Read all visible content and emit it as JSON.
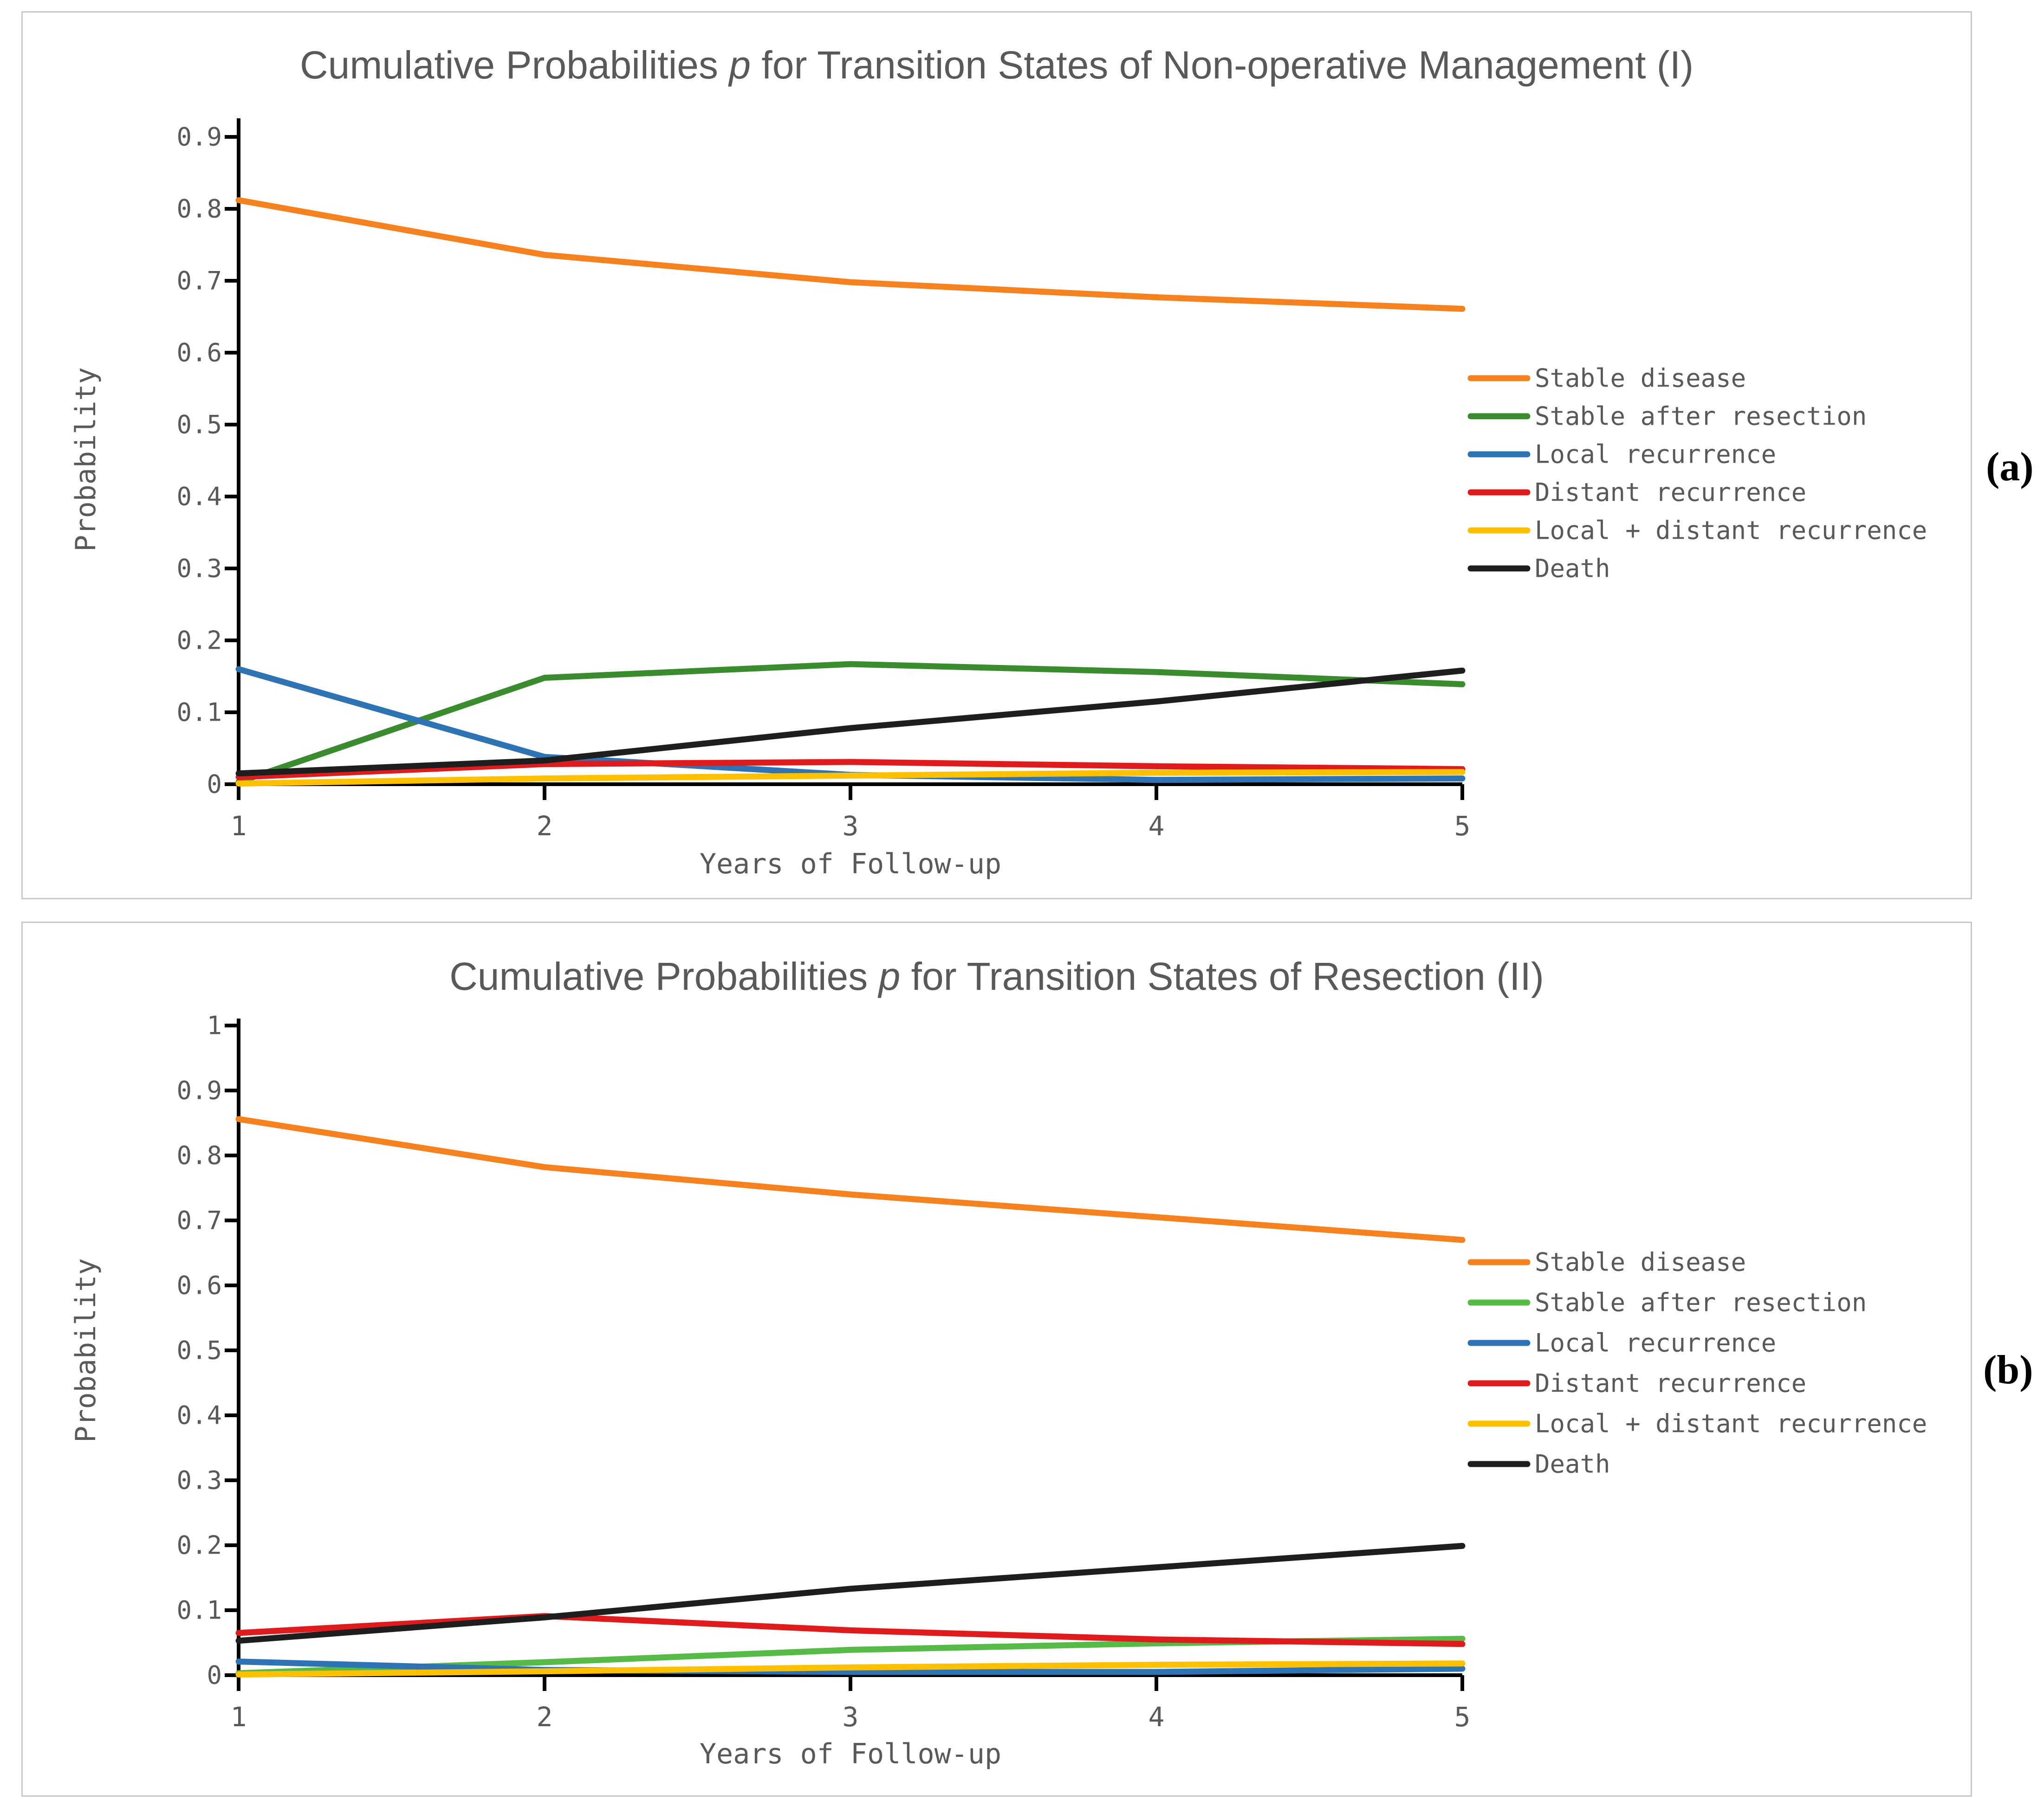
{
  "figure": {
    "background": "#ffffff",
    "border_color": "#c9c9c9",
    "text_color": "#595959",
    "axis_color": "#000000"
  },
  "chart_data": [
    {
      "type": "line",
      "panel": "a",
      "side_label": "(a)",
      "title_prefix": "Cumulative Probabilities ",
      "title_italic": "p",
      "title_suffix": " for Transition States of Non-operative Management (I)",
      "xlabel": "Years of Follow-up",
      "ylabel": "Probability",
      "x": [
        1,
        2,
        3,
        4,
        5
      ],
      "xtick_labels": [
        "1",
        "2",
        "3",
        "4",
        "5"
      ],
      "ylim": [
        0,
        0.9
      ],
      "ytick_step": 0.1,
      "ytick_labels": [
        "0",
        "0.1",
        "0.2",
        "0.3",
        "0.4",
        "0.5",
        "0.6",
        "0.7",
        "0.8",
        "0.9"
      ],
      "grid": false,
      "legend_position": "right",
      "series": [
        {
          "name": "Stable disease",
          "color": "#F5821F",
          "values": [
            0.812,
            0.736,
            0.698,
            0.677,
            0.661
          ]
        },
        {
          "name": "Stable after resection",
          "color": "#3A8C2E",
          "values": [
            0.003,
            0.148,
            0.167,
            0.156,
            0.139
          ]
        },
        {
          "name": "Local recurrence",
          "color": "#2E74B5",
          "values": [
            0.16,
            0.038,
            0.013,
            0.006,
            0.008
          ]
        },
        {
          "name": "Distant recurrence",
          "color": "#E01B1E",
          "values": [
            0.01,
            0.028,
            0.031,
            0.025,
            0.021
          ]
        },
        {
          "name": "Local + distant recurrence",
          "color": "#FFC000",
          "values": [
            0.001,
            0.008,
            0.012,
            0.016,
            0.017
          ]
        },
        {
          "name": "Death",
          "color": "#1E1E1E",
          "values": [
            0.015,
            0.033,
            0.078,
            0.115,
            0.158
          ]
        }
      ]
    },
    {
      "type": "line",
      "panel": "b",
      "side_label": "(b)",
      "title_prefix": "Cumulative Probabilities ",
      "title_italic": "p",
      "title_suffix": " for Transition States of Resection (II)",
      "xlabel": "Years of Follow-up",
      "ylabel": "Probability",
      "x": [
        1,
        2,
        3,
        4,
        5
      ],
      "xtick_labels": [
        "1",
        "2",
        "3",
        "4",
        "5"
      ],
      "ylim": [
        0,
        1
      ],
      "ytick_step": 0.1,
      "ytick_labels": [
        "0",
        "0.1",
        "0.2",
        "0.3",
        "0.4",
        "0.5",
        "0.6",
        "0.7",
        "0.8",
        "0.9",
        "1"
      ],
      "grid": false,
      "legend_position": "right",
      "series": [
        {
          "name": "Stable disease",
          "color": "#F5821F",
          "values": [
            0.856,
            0.782,
            0.74,
            0.705,
            0.67
          ]
        },
        {
          "name": "Stable after resection",
          "color": "#56BA47",
          "values": [
            0.003,
            0.02,
            0.039,
            0.049,
            0.056
          ]
        },
        {
          "name": "Local recurrence",
          "color": "#2E74B5",
          "values": [
            0.021,
            0.008,
            0.005,
            0.005,
            0.01
          ]
        },
        {
          "name": "Distant recurrence",
          "color": "#E01B1E",
          "values": [
            0.065,
            0.091,
            0.069,
            0.055,
            0.048
          ]
        },
        {
          "name": "Local + distant recurrence",
          "color": "#FFC000",
          "values": [
            0.001,
            0.006,
            0.012,
            0.016,
            0.018
          ]
        },
        {
          "name": "Death",
          "color": "#1E1E1E",
          "values": [
            0.053,
            0.089,
            0.133,
            0.166,
            0.199
          ]
        }
      ]
    }
  ]
}
